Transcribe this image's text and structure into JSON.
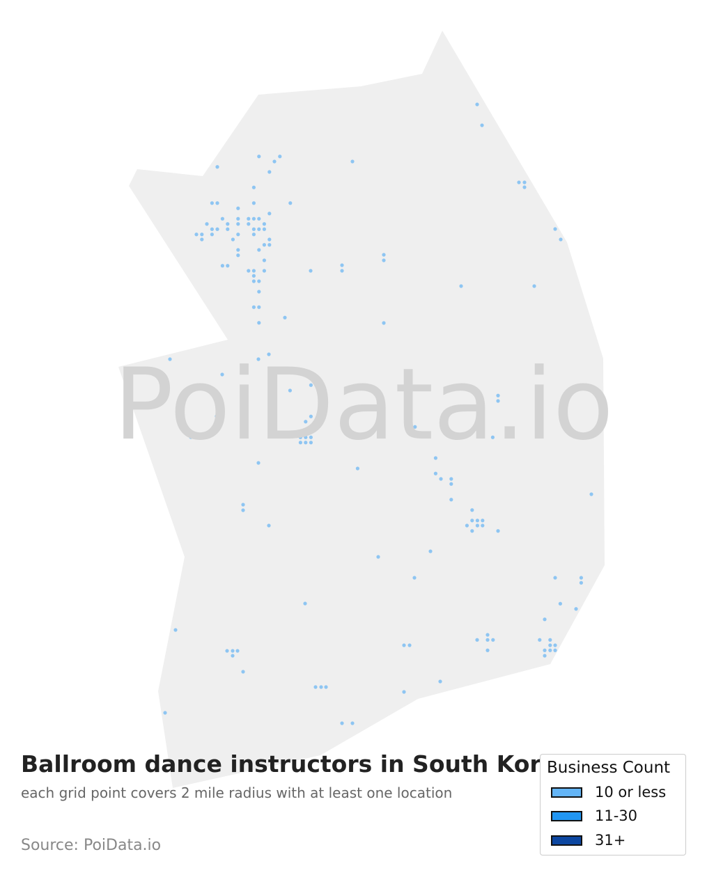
{
  "title": "Ballroom dance instructors in South Korea",
  "subtitle": "each grid point covers 2 mile radius with at least one location",
  "source": "Source: PoiData.io",
  "watermark": "PoiData.io",
  "colors": {
    "land": "#efefef",
    "point": "#8ec5f2",
    "watermark": "#d3d3d3"
  },
  "legend": {
    "title": "Business Count",
    "items": [
      {
        "label": "10 or less",
        "color": "#64b5f6"
      },
      {
        "label": "11-30",
        "color": "#2196f3"
      },
      {
        "label": "31+",
        "color": "#0d47a1"
      }
    ]
  },
  "chart_data": {
    "type": "scatter",
    "legend_placement": "bottom-right",
    "points_lon_lat": [
      [
        126.859,
        38.101
      ],
      [
        127.009,
        38.101
      ],
      [
        126.97,
        38.072
      ],
      [
        126.56,
        38.041
      ],
      [
        126.934,
        38.012
      ],
      [
        126.822,
        37.923
      ],
      [
        126.522,
        37.833
      ],
      [
        126.56,
        37.833
      ],
      [
        126.822,
        37.833
      ],
      [
        127.084,
        37.833
      ],
      [
        126.709,
        37.803
      ],
      [
        126.934,
        37.773
      ],
      [
        126.597,
        37.743
      ],
      [
        126.709,
        37.743
      ],
      [
        126.784,
        37.743
      ],
      [
        126.822,
        37.743
      ],
      [
        126.859,
        37.743
      ],
      [
        126.485,
        37.713
      ],
      [
        126.634,
        37.713
      ],
      [
        126.709,
        37.713
      ],
      [
        126.784,
        37.713
      ],
      [
        126.897,
        37.713
      ],
      [
        126.522,
        37.683
      ],
      [
        126.56,
        37.683
      ],
      [
        126.634,
        37.683
      ],
      [
        126.822,
        37.683
      ],
      [
        126.859,
        37.683
      ],
      [
        126.897,
        37.683
      ],
      [
        126.41,
        37.653
      ],
      [
        126.449,
        37.653
      ],
      [
        126.522,
        37.653
      ],
      [
        126.709,
        37.653
      ],
      [
        126.822,
        37.653
      ],
      [
        126.449,
        37.624
      ],
      [
        126.672,
        37.624
      ],
      [
        126.934,
        37.624
      ],
      [
        126.897,
        37.593
      ],
      [
        126.934,
        37.593
      ],
      [
        126.709,
        37.564
      ],
      [
        126.859,
        37.564
      ],
      [
        126.709,
        37.533
      ],
      [
        126.897,
        37.504
      ],
      [
        126.597,
        37.473
      ],
      [
        126.634,
        37.473
      ],
      [
        126.784,
        37.444
      ],
      [
        126.822,
        37.444
      ],
      [
        126.897,
        37.444
      ],
      [
        126.822,
        37.415
      ],
      [
        126.822,
        37.384
      ],
      [
        126.859,
        37.384
      ],
      [
        126.859,
        37.324
      ],
      [
        126.822,
        37.235
      ],
      [
        126.859,
        37.235
      ],
      [
        127.045,
        37.175
      ],
      [
        126.859,
        37.145
      ],
      [
        127.53,
        38.072
      ],
      [
        128.425,
        38.4
      ],
      [
        128.46,
        38.28
      ],
      [
        128.725,
        37.952
      ],
      [
        128.765,
        37.952
      ],
      [
        128.765,
        37.924
      ],
      [
        128.985,
        37.684
      ],
      [
        129.025,
        37.624
      ],
      [
        127.23,
        37.444
      ],
      [
        127.455,
        37.476
      ],
      [
        127.455,
        37.444
      ],
      [
        127.755,
        37.536
      ],
      [
        127.755,
        37.504
      ],
      [
        128.31,
        37.356
      ],
      [
        128.835,
        37.356
      ],
      [
        127.755,
        37.144
      ],
      [
        126.22,
        36.936
      ],
      [
        126.855,
        36.936
      ],
      [
        126.93,
        36.964
      ],
      [
        126.595,
        36.848
      ],
      [
        127.082,
        36.756
      ],
      [
        127.269,
        36.816
      ],
      [
        127.232,
        36.787
      ],
      [
        127.269,
        36.787
      ],
      [
        127.307,
        36.787
      ],
      [
        127.232,
        36.607
      ],
      [
        127.194,
        36.577
      ],
      [
        127.119,
        36.517
      ],
      [
        127.157,
        36.487
      ],
      [
        127.194,
        36.487
      ],
      [
        127.232,
        36.487
      ],
      [
        127.157,
        36.457
      ],
      [
        127.194,
        36.457
      ],
      [
        127.232,
        36.457
      ],
      [
        127.979,
        36.547
      ],
      [
        128.575,
        36.727
      ],
      [
        128.575,
        36.696
      ],
      [
        128.537,
        36.487
      ],
      [
        127.567,
        36.308
      ],
      [
        128.127,
        36.368
      ],
      [
        128.127,
        36.279
      ],
      [
        128.165,
        36.248
      ],
      [
        128.239,
        36.248
      ],
      [
        128.239,
        36.219
      ],
      [
        128.239,
        36.129
      ],
      [
        128.389,
        36.069
      ],
      [
        128.389,
        36.009
      ],
      [
        128.427,
        36.009
      ],
      [
        128.464,
        36.009
      ],
      [
        128.352,
        35.98
      ],
      [
        128.427,
        35.98
      ],
      [
        128.464,
        35.98
      ],
      [
        128.389,
        35.949
      ],
      [
        128.575,
        35.949
      ],
      [
        126.555,
        36.608
      ],
      [
        126.37,
        36.488
      ],
      [
        126.855,
        36.34
      ],
      [
        126.745,
        36.1
      ],
      [
        126.745,
        36.068
      ],
      [
        126.93,
        35.98
      ],
      [
        129.245,
        36.16
      ],
      [
        127.715,
        35.8
      ],
      [
        128.09,
        35.832
      ],
      [
        127.975,
        35.68
      ],
      [
        127.19,
        35.532
      ],
      [
        126.26,
        35.38
      ],
      [
        126.63,
        35.26
      ],
      [
        126.67,
        35.26
      ],
      [
        126.705,
        35.26
      ],
      [
        126.67,
        35.232
      ],
      [
        126.745,
        35.14
      ],
      [
        126.185,
        34.904
      ],
      [
        127.265,
        35.052
      ],
      [
        127.305,
        35.052
      ],
      [
        127.34,
        35.052
      ],
      [
        127.9,
        35.292
      ],
      [
        127.94,
        35.292
      ],
      [
        128.16,
        35.084
      ],
      [
        127.9,
        35.024
      ],
      [
        127.455,
        34.844
      ],
      [
        127.53,
        34.844
      ],
      [
        128.985,
        35.68
      ],
      [
        129.172,
        35.68
      ],
      [
        129.172,
        35.651
      ],
      [
        129.022,
        35.531
      ],
      [
        129.135,
        35.501
      ],
      [
        128.91,
        35.441
      ],
      [
        128.5,
        35.352
      ],
      [
        128.425,
        35.323
      ],
      [
        128.5,
        35.323
      ],
      [
        128.539,
        35.323
      ],
      [
        128.5,
        35.263
      ],
      [
        128.874,
        35.323
      ],
      [
        128.949,
        35.323
      ],
      [
        128.949,
        35.292
      ],
      [
        128.985,
        35.292
      ],
      [
        128.91,
        35.263
      ],
      [
        128.949,
        35.263
      ],
      [
        128.985,
        35.263
      ],
      [
        128.91,
        35.232
      ]
    ]
  }
}
